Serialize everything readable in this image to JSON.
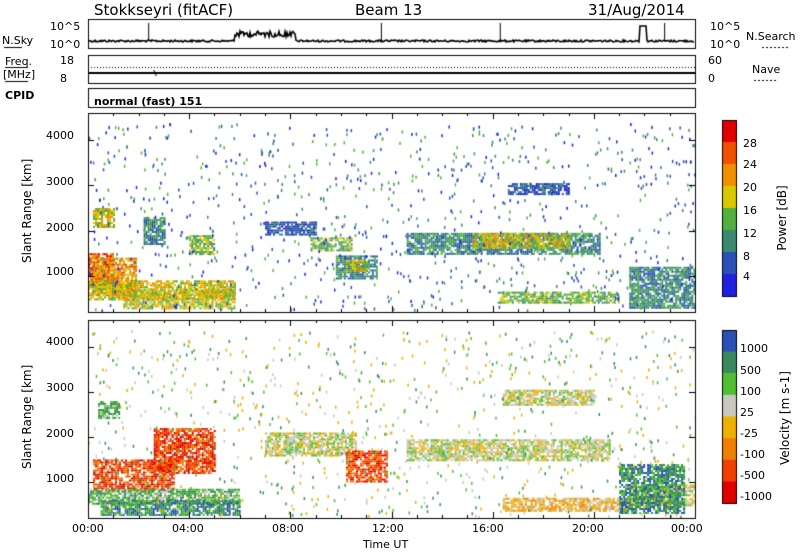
{
  "header": {
    "title": "Stokkseyri (fitACF)",
    "beam": "Beam 13",
    "date": "31/Aug/2014"
  },
  "top_panels": {
    "nsky_label": "N.Sky",
    "nsky_ticks": [
      "10^5",
      "10^0"
    ],
    "nsearch_label": "N.Search",
    "nsearch_ticks": [
      "10^5",
      "10^0"
    ],
    "freq_label_1": "Freq.",
    "freq_label_2": "[MHz]",
    "freq_ticks": [
      "18",
      "8"
    ],
    "nave_label": "Nave",
    "nave_ticks": [
      "60",
      "0"
    ],
    "cpid_label": "CPID",
    "cpid_text": "normal (fast) 151"
  },
  "colors": {
    "power_scale": [
      "#2020e0",
      "#2a50b8",
      "#3a8a70",
      "#50b040",
      "#d8c800",
      "#f09000",
      "#f05000",
      "#e00000"
    ],
    "velocity_scale": [
      "#e00000",
      "#f04000",
      "#f08000",
      "#f0b000",
      "#c8c8c0",
      "#50c030",
      "#3a8a60",
      "#2a50b8"
    ]
  },
  "chart_data": [
    {
      "type": "heatmap",
      "name": "power",
      "ylabel": "Slant Range [km]",
      "colorbar_label": "Power [dB]",
      "colorbar_ticks": [
        "28",
        "24",
        "20",
        "16",
        "12",
        "8",
        "4"
      ],
      "yticks": [
        "4000",
        "3000",
        "2000",
        "1000"
      ],
      "ylim": [
        200,
        4600
      ],
      "xlim_hours": [
        0,
        24
      ],
      "regions": [
        {
          "t0": 0.0,
          "t1": 1.0,
          "r0": 800,
          "r1": 1500,
          "level": 6
        },
        {
          "t0": 0.2,
          "t1": 1.9,
          "r0": 600,
          "r1": 1400,
          "level": 5
        },
        {
          "t0": 0.0,
          "t1": 5.8,
          "r0": 500,
          "r1": 900,
          "level": 4
        },
        {
          "t0": 1.4,
          "t1": 5.8,
          "r0": 280,
          "r1": 700,
          "level": 4
        },
        {
          "t0": 0.2,
          "t1": 1.0,
          "r0": 2100,
          "r1": 2500,
          "level": 4
        },
        {
          "t0": 2.2,
          "t1": 3.0,
          "r0": 1700,
          "r1": 2300,
          "level": 2
        },
        {
          "t0": 4.0,
          "t1": 5.0,
          "r0": 1500,
          "r1": 1900,
          "level": 3
        },
        {
          "t0": 7.0,
          "t1": 9.0,
          "r0": 1900,
          "r1": 2200,
          "level": 1
        },
        {
          "t0": 8.8,
          "t1": 10.4,
          "r0": 1550,
          "r1": 1850,
          "level": 3
        },
        {
          "t0": 9.8,
          "t1": 11.4,
          "r0": 950,
          "r1": 1450,
          "level": 2
        },
        {
          "t0": 10.2,
          "t1": 11.0,
          "r0": 1100,
          "r1": 1350,
          "level": 4
        },
        {
          "t0": 12.6,
          "t1": 20.2,
          "r0": 1500,
          "r1": 1950,
          "level": 2
        },
        {
          "t0": 15.2,
          "t1": 19.0,
          "r0": 1600,
          "r1": 1950,
          "level": 4
        },
        {
          "t0": 16.6,
          "t1": 19.0,
          "r0": 2800,
          "r1": 3050,
          "level": 1
        },
        {
          "t0": 16.2,
          "t1": 21.0,
          "r0": 400,
          "r1": 650,
          "level": 3
        },
        {
          "t0": 21.4,
          "t1": 24.0,
          "r0": 300,
          "r1": 1200,
          "level": 2
        }
      ]
    },
    {
      "type": "heatmap",
      "name": "velocity",
      "ylabel": "Slant Range [km]",
      "colorbar_label": "Velocity [m s-1]",
      "colorbar_ticks": [
        "1000",
        "500",
        "100",
        "25",
        "-25",
        "-100",
        "-500",
        "-1000"
      ],
      "yticks": [
        "4000",
        "3000",
        "2000",
        "1000"
      ],
      "ylim": [
        200,
        4600
      ],
      "xlim_hours": [
        0,
        24
      ],
      "xticks": [
        "00:00",
        "04:00",
        "08:00",
        "12:00",
        "16:00",
        "20:00",
        "00:00"
      ],
      "xlabel": "Time UT",
      "regions": [
        {
          "t0": 0.2,
          "t1": 3.4,
          "r0": 800,
          "r1": 1500,
          "level": 1
        },
        {
          "t0": 2.6,
          "t1": 5.0,
          "r0": 1200,
          "r1": 2200,
          "level": 1
        },
        {
          "t0": 0.0,
          "t1": 6.0,
          "r0": 500,
          "r1": 850,
          "level": 5
        },
        {
          "t0": 0.5,
          "t1": 6.0,
          "r0": 280,
          "r1": 600,
          "level": 6
        },
        {
          "t0": 0.4,
          "t1": 1.2,
          "r0": 2400,
          "r1": 2800,
          "level": 5
        },
        {
          "t0": 7.0,
          "t1": 10.6,
          "r0": 1600,
          "r1": 2100,
          "level": 4
        },
        {
          "t0": 10.2,
          "t1": 11.8,
          "r0": 1000,
          "r1": 1700,
          "level": 1
        },
        {
          "t0": 12.6,
          "t1": 20.6,
          "r0": 1500,
          "r1": 1950,
          "level": 4
        },
        {
          "t0": 16.4,
          "t1": 20.0,
          "r0": 2700,
          "r1": 3050,
          "level": 4
        },
        {
          "t0": 16.4,
          "t1": 21.6,
          "r0": 380,
          "r1": 650,
          "level": 3
        },
        {
          "t0": 21.4,
          "t1": 24.0,
          "r0": 500,
          "r1": 950,
          "level": 4
        },
        {
          "t0": 21.0,
          "t1": 23.6,
          "r0": 300,
          "r1": 1400,
          "level": 6
        }
      ]
    }
  ]
}
